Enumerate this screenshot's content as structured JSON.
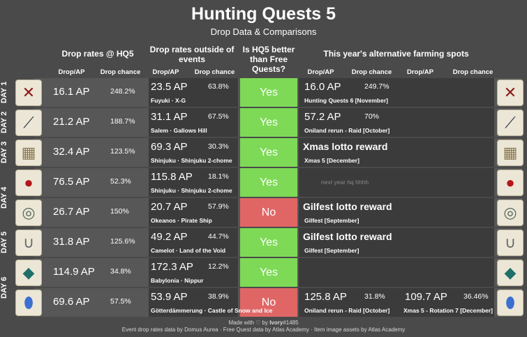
{
  "title": "Hunting Quests 5",
  "subtitle": "Drop Data & Comparisons",
  "headers": {
    "hq5": "Drop rates @ HQ5",
    "outside": "Drop rates outside of events",
    "better": "Is HQ5 better than Free Quests?",
    "alt": "This year's alternative farming spots",
    "drop_ap": "Drop/AP",
    "drop_chance": "Drop chance"
  },
  "rows": [
    {
      "day": "DAY 1",
      "hq_ap": "16.1 AP",
      "hq_pct": "248.2%",
      "fq_ap": "23.5 AP",
      "fq_pct": "63.8%",
      "fq_loc": "Fuyuki · X-G",
      "verdict": "Yes",
      "a1_ap": "16.0 AP",
      "a1_pct": "249.7%",
      "a1_loc": "Hunting Quests 6 [November]",
      "a2_ap": "",
      "a2_pct": "",
      "a2_loc": ""
    },
    {
      "day": "DAY 2",
      "hq_ap": "21.2 AP",
      "hq_pct": "188.7%",
      "fq_ap": "31.1 AP",
      "fq_pct": "67.5%",
      "fq_loc": "Salem · Gallows Hill",
      "verdict": "Yes",
      "a1_ap": "57.2 AP",
      "a1_pct": "70%",
      "a1_loc": "Oniland rerun - Raid [October]",
      "a2_ap": "",
      "a2_pct": "",
      "a2_loc": ""
    },
    {
      "day": "DAY 3",
      "hq_ap": "32.4 AP",
      "hq_pct": "123.5%",
      "fq_ap": "69.3 AP",
      "fq_pct": "30.3%",
      "fq_loc": "Shinjuku · Shinjuku 2-chome",
      "verdict": "Yes",
      "a1_big": "Xmas lotto reward",
      "a1_loc": "Xmas 5 [December]",
      "a2_ap": "",
      "a2_pct": "",
      "a2_loc": ""
    },
    {
      "day": "",
      "hq_ap": "76.5 AP",
      "hq_pct": "52.3%",
      "fq_ap": "115.8 AP",
      "fq_pct": "18.1%",
      "fq_loc": "Shinjuku · Shinjuku 2-chome",
      "verdict": "Yes",
      "a1_faint": "next year hq hhhh",
      "a2_ap": "",
      "a2_pct": "",
      "a2_loc": ""
    },
    {
      "day": "",
      "hq_ap": "26.7 AP",
      "hq_pct": "150%",
      "fq_ap": "20.7 AP",
      "fq_pct": "57.9%",
      "fq_loc": "Okeanos · Pirate Ship",
      "verdict": "No",
      "a1_big": "Gilfest lotto reward",
      "a1_loc": "Gilfest [September]",
      "a2_ap": "",
      "a2_pct": "",
      "a2_loc": ""
    },
    {
      "day": "",
      "hq_ap": "31.8 AP",
      "hq_pct": "125.6%",
      "fq_ap": "49.2 AP",
      "fq_pct": "44.7%",
      "fq_loc": "Camelot · Land of the Void",
      "verdict": "Yes",
      "a1_big": "Gilfest lotto reward",
      "a1_loc": "Gilfest [September]",
      "a2_ap": "",
      "a2_pct": "",
      "a2_loc": ""
    },
    {
      "day": "",
      "hq_ap": "114.9 AP",
      "hq_pct": "34.8%",
      "fq_ap": "172.3 AP",
      "fq_pct": "12.2%",
      "fq_loc": "Babylonia · Nippur",
      "verdict": "Yes",
      "a1_ap": "",
      "a1_pct": "",
      "a1_loc": "",
      "a2_ap": "",
      "a2_pct": "",
      "a2_loc": ""
    },
    {
      "day": "",
      "hq_ap": "69.6 AP",
      "hq_pct": "57.5%",
      "fq_ap": "53.9 AP",
      "fq_pct": "38.9%",
      "fq_loc": "Götterdämmerung · Castle of Snow and Ice",
      "verdict": "No",
      "a1_ap": "125.8 AP",
      "a1_pct": "31.8%",
      "a1_loc": "Oniland rerun - Raid [October]",
      "a2_ap": "109.7 AP",
      "a2_pct": "36.46%",
      "a2_loc": "Xmas 5 - Rotation 7 [December]"
    }
  ],
  "days": [
    "DAY 1",
    "DAY 2",
    "DAY 3",
    "DAY 4",
    "DAY 5",
    "DAY 6"
  ],
  "footer1_a": "Made with ♡ by ",
  "footer1_b": "Ivory",
  "footer1_c": "#1485",
  "footer2": "Event drop rates data by Domus Aurea · Free Quest data by Atlas Academy · Item image assets by Atlas Academy",
  "colors": {
    "yes": "#7ed957",
    "no": "#e06666",
    "row": "#575757",
    "dark": "#3b3b3b"
  },
  "icons": [
    "bone-icon",
    "fang-icon",
    "map-icon",
    "blood-drop-icon",
    "gear-disc-icon",
    "horseshoe-icon",
    "scale-icon",
    "crystal-egg-icon"
  ]
}
